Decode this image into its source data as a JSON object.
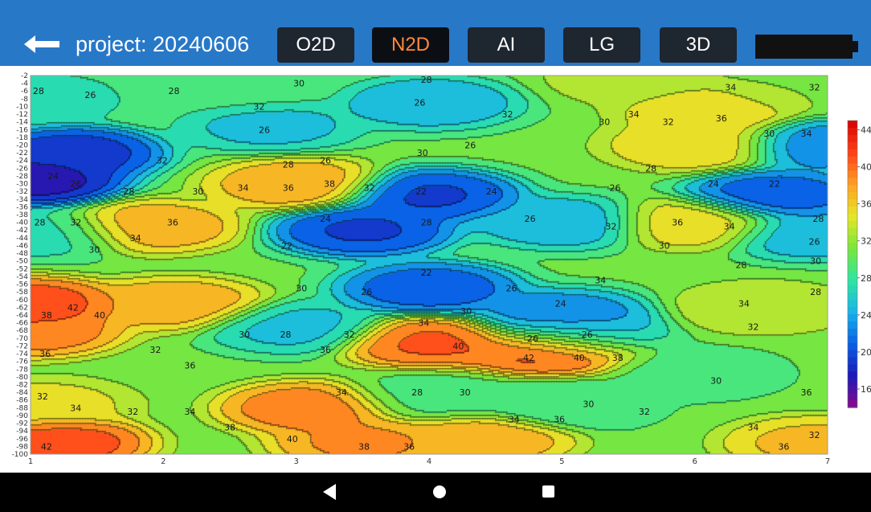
{
  "header": {
    "back_icon": "back-arrow-icon",
    "project_label": "project: 20240606",
    "modes": [
      {
        "label": "O2D",
        "active": false
      },
      {
        "label": "N2D",
        "active": true
      },
      {
        "label": "AI",
        "active": false
      },
      {
        "label": "LG",
        "active": false
      },
      {
        "label": "3D",
        "active": false
      }
    ],
    "battery_icon": "battery-icon",
    "accent_color": "#2878c8",
    "active_text_color": "#ff8a3d"
  },
  "chart_data": {
    "type": "heatmap",
    "x_ticks": [
      "1",
      "2",
      "3",
      "4",
      "5",
      "6",
      "7"
    ],
    "xlim": [
      1,
      7
    ],
    "y_ticks": [
      "-2",
      "-4",
      "-6",
      "-8",
      "-10",
      "-12",
      "-14",
      "-16",
      "-18",
      "-20",
      "-22",
      "-24",
      "-26",
      "-28",
      "-30",
      "-32",
      "-34",
      "-36",
      "-38",
      "-40",
      "-42",
      "-44",
      "-46",
      "-48",
      "-50",
      "-52",
      "-54",
      "-56",
      "-58",
      "-60",
      "-62",
      "-64",
      "-66",
      "-68",
      "-70",
      "-72",
      "-74",
      "-76",
      "-78",
      "-80",
      "-82",
      "-84",
      "-86",
      "-88",
      "-90",
      "-92",
      "-94",
      "-96",
      "-98",
      "-100"
    ],
    "ylim": [
      -100,
      -2
    ],
    "colorbar": {
      "ticks": [
        "44",
        "40",
        "36",
        "32",
        "28",
        "24",
        "20",
        "16"
      ],
      "range": [
        14,
        45
      ],
      "colors": [
        "#8a0a8a",
        "#1a1ab8",
        "#0a60e6",
        "#18b4ea",
        "#2ee6a0",
        "#7ae63c",
        "#e6e628",
        "#ffa024",
        "#ff4018",
        "#d70000"
      ]
    },
    "features": [
      {
        "x": 1.0,
        "y": -29,
        "value": 16
      },
      {
        "x": 1.3,
        "y": -22,
        "value": 18
      },
      {
        "x": 1.0,
        "y": -61,
        "value": 42
      },
      {
        "x": 1.0,
        "y": -68,
        "value": 40
      },
      {
        "x": 1.2,
        "y": -97,
        "value": 42
      },
      {
        "x": 1.0,
        "y": -8,
        "value": 26
      },
      {
        "x": 1.1,
        "y": -43,
        "value": 27
      },
      {
        "x": 1.1,
        "y": -87,
        "value": 35
      },
      {
        "x": 1.9,
        "y": -41,
        "value": 38
      },
      {
        "x": 2.1,
        "y": -61,
        "value": 38
      },
      {
        "x": 3.0,
        "y": -30,
        "value": 38
      },
      {
        "x": 3.1,
        "y": -88,
        "value": 40
      },
      {
        "x": 3.0,
        "y": -67,
        "value": 25
      },
      {
        "x": 4.0,
        "y": -71,
        "value": 41
      },
      {
        "x": 4.9,
        "y": -73,
        "value": 42
      },
      {
        "x": 4.0,
        "y": -33,
        "value": 19
      },
      {
        "x": 3.5,
        "y": -42,
        "value": 19
      },
      {
        "x": 4.0,
        "y": -57,
        "value": 20
      },
      {
        "x": 4.0,
        "y": -9,
        "value": 24
      },
      {
        "x": 2.8,
        "y": -15,
        "value": 25
      },
      {
        "x": 5.0,
        "y": -64,
        "value": 22
      },
      {
        "x": 5.1,
        "y": -69,
        "value": 25
      },
      {
        "x": 5.0,
        "y": -40,
        "value": 24
      },
      {
        "x": 6.1,
        "y": -11,
        "value": 36
      },
      {
        "x": 6.0,
        "y": -20,
        "value": 36
      },
      {
        "x": 6.0,
        "y": -40,
        "value": 36
      },
      {
        "x": 6.6,
        "y": -33,
        "value": 20
      },
      {
        "x": 7.0,
        "y": -20,
        "value": 22
      },
      {
        "x": 6.9,
        "y": -43,
        "value": 24
      },
      {
        "x": 6.5,
        "y": -62,
        "value": 34
      },
      {
        "x": 6.0,
        "y": -79,
        "value": 29
      },
      {
        "x": 5.0,
        "y": -87,
        "value": 28
      },
      {
        "x": 4.0,
        "y": -85,
        "value": 29
      },
      {
        "x": 3.5,
        "y": -97,
        "value": 39
      },
      {
        "x": 4.4,
        "y": -96,
        "value": 38
      },
      {
        "x": 6.9,
        "y": -97,
        "value": 37
      },
      {
        "x": 2.5,
        "y": -5,
        "value": 29
      },
      {
        "x": 5.5,
        "y": -3,
        "value": 33
      },
      {
        "x": 6.8,
        "y": -5,
        "value": 32
      }
    ],
    "contour_labels": [
      {
        "x": 1.06,
        "y": -6,
        "text": "28"
      },
      {
        "x": 1.45,
        "y": -7,
        "text": "26"
      },
      {
        "x": 2.08,
        "y": -6,
        "text": "28"
      },
      {
        "x": 3.02,
        "y": -4,
        "text": "30"
      },
      {
        "x": 3.98,
        "y": -3,
        "text": "28"
      },
      {
        "x": 6.27,
        "y": -5,
        "text": "34"
      },
      {
        "x": 6.9,
        "y": -5,
        "text": "32"
      },
      {
        "x": 2.72,
        "y": -10,
        "text": "32"
      },
      {
        "x": 3.93,
        "y": -9,
        "text": "26"
      },
      {
        "x": 4.59,
        "y": -12,
        "text": "32"
      },
      {
        "x": 5.54,
        "y": -12,
        "text": "34"
      },
      {
        "x": 5.32,
        "y": -14,
        "text": "30"
      },
      {
        "x": 5.8,
        "y": -14,
        "text": "32"
      },
      {
        "x": 6.2,
        "y": -13,
        "text": "36"
      },
      {
        "x": 2.76,
        "y": -16,
        "text": "26"
      },
      {
        "x": 6.56,
        "y": -17,
        "text": "30"
      },
      {
        "x": 6.84,
        "y": -17,
        "text": "34"
      },
      {
        "x": 1.99,
        "y": -24,
        "text": "32"
      },
      {
        "x": 2.94,
        "y": -25,
        "text": "28"
      },
      {
        "x": 3.22,
        "y": -24,
        "text": "26"
      },
      {
        "x": 3.95,
        "y": -22,
        "text": "30"
      },
      {
        "x": 4.31,
        "y": -20,
        "text": "26"
      },
      {
        "x": 5.67,
        "y": -26,
        "text": "28"
      },
      {
        "x": 1.17,
        "y": -28,
        "text": "24"
      },
      {
        "x": 1.34,
        "y": -30,
        "text": "26"
      },
      {
        "x": 1.74,
        "y": -32,
        "text": "28"
      },
      {
        "x": 2.26,
        "y": -32,
        "text": "30"
      },
      {
        "x": 2.6,
        "y": -31,
        "text": "34"
      },
      {
        "x": 2.94,
        "y": -31,
        "text": "36"
      },
      {
        "x": 3.25,
        "y": -30,
        "text": "38"
      },
      {
        "x": 3.55,
        "y": -31,
        "text": "32"
      },
      {
        "x": 3.94,
        "y": -32,
        "text": "22"
      },
      {
        "x": 4.47,
        "y": -32,
        "text": "24"
      },
      {
        "x": 5.4,
        "y": -31,
        "text": "26"
      },
      {
        "x": 6.14,
        "y": -30,
        "text": "24"
      },
      {
        "x": 6.6,
        "y": -30,
        "text": "22"
      },
      {
        "x": 1.07,
        "y": -40,
        "text": "28"
      },
      {
        "x": 1.34,
        "y": -40,
        "text": "32"
      },
      {
        "x": 2.07,
        "y": -40,
        "text": "36"
      },
      {
        "x": 1.79,
        "y": -44,
        "text": "34"
      },
      {
        "x": 1.48,
        "y": -47,
        "text": "30"
      },
      {
        "x": 3.22,
        "y": -39,
        "text": "24"
      },
      {
        "x": 3.98,
        "y": -40,
        "text": "28"
      },
      {
        "x": 4.76,
        "y": -39,
        "text": "26"
      },
      {
        "x": 5.37,
        "y": -41,
        "text": "32"
      },
      {
        "x": 5.87,
        "y": -40,
        "text": "36"
      },
      {
        "x": 6.26,
        "y": -41,
        "text": "34"
      },
      {
        "x": 6.93,
        "y": -39,
        "text": "28"
      },
      {
        "x": 6.9,
        "y": -45,
        "text": "26"
      },
      {
        "x": 2.93,
        "y": -46,
        "text": "22"
      },
      {
        "x": 5.77,
        "y": -46,
        "text": "30"
      },
      {
        "x": 6.35,
        "y": -51,
        "text": "28"
      },
      {
        "x": 6.91,
        "y": -50,
        "text": "30"
      },
      {
        "x": 3.98,
        "y": -53,
        "text": "22"
      },
      {
        "x": 5.29,
        "y": -55,
        "text": "34"
      },
      {
        "x": 3.04,
        "y": -57,
        "text": "30"
      },
      {
        "x": 3.53,
        "y": -58,
        "text": "26"
      },
      {
        "x": 4.62,
        "y": -57,
        "text": "26"
      },
      {
        "x": 6.91,
        "y": -58,
        "text": "28"
      },
      {
        "x": 4.99,
        "y": -61,
        "text": "24"
      },
      {
        "x": 6.37,
        "y": -61,
        "text": "34"
      },
      {
        "x": 1.32,
        "y": -62,
        "text": "42"
      },
      {
        "x": 1.12,
        "y": -64,
        "text": "38"
      },
      {
        "x": 1.52,
        "y": -64,
        "text": "40"
      },
      {
        "x": 4.28,
        "y": -63,
        "text": "30"
      },
      {
        "x": 3.96,
        "y": -66,
        "text": "34"
      },
      {
        "x": 6.44,
        "y": -67,
        "text": "32"
      },
      {
        "x": 2.61,
        "y": -69,
        "text": "30"
      },
      {
        "x": 2.92,
        "y": -69,
        "text": "28"
      },
      {
        "x": 3.4,
        "y": -69,
        "text": "32"
      },
      {
        "x": 4.78,
        "y": -70,
        "text": "26"
      },
      {
        "x": 5.19,
        "y": -69,
        "text": "26"
      },
      {
        "x": 4.22,
        "y": -72,
        "text": "40"
      },
      {
        "x": 1.11,
        "y": -74,
        "text": "36"
      },
      {
        "x": 1.94,
        "y": -73,
        "text": "32"
      },
      {
        "x": 3.22,
        "y": -73,
        "text": "36"
      },
      {
        "x": 4.75,
        "y": -75,
        "text": "42"
      },
      {
        "x": 5.13,
        "y": -75,
        "text": "40"
      },
      {
        "x": 5.42,
        "y": -75,
        "text": "38"
      },
      {
        "x": 2.2,
        "y": -77,
        "text": "36"
      },
      {
        "x": 6.16,
        "y": -81,
        "text": "30"
      },
      {
        "x": 3.34,
        "y": -84,
        "text": "34"
      },
      {
        "x": 3.91,
        "y": -84,
        "text": "28"
      },
      {
        "x": 4.27,
        "y": -84,
        "text": "30"
      },
      {
        "x": 6.84,
        "y": -84,
        "text": "36"
      },
      {
        "x": 1.09,
        "y": -85,
        "text": "32"
      },
      {
        "x": 1.34,
        "y": -88,
        "text": "34"
      },
      {
        "x": 5.2,
        "y": -87,
        "text": "30"
      },
      {
        "x": 1.77,
        "y": -89,
        "text": "32"
      },
      {
        "x": 2.2,
        "y": -89,
        "text": "34"
      },
      {
        "x": 5.62,
        "y": -89,
        "text": "32"
      },
      {
        "x": 4.64,
        "y": -91,
        "text": "34"
      },
      {
        "x": 4.98,
        "y": -91,
        "text": "36"
      },
      {
        "x": 2.5,
        "y": -93,
        "text": "38"
      },
      {
        "x": 6.44,
        "y": -93,
        "text": "34"
      },
      {
        "x": 6.9,
        "y": -95,
        "text": "32"
      },
      {
        "x": 2.97,
        "y": -96,
        "text": "40"
      },
      {
        "x": 1.12,
        "y": -98,
        "text": "42"
      },
      {
        "x": 3.51,
        "y": -98,
        "text": "38"
      },
      {
        "x": 3.85,
        "y": -98,
        "text": "36"
      },
      {
        "x": 6.67,
        "y": -98,
        "text": "36"
      }
    ]
  },
  "nav": {
    "back_icon": "nav-back-icon",
    "home_icon": "nav-home-icon",
    "recent_icon": "nav-recents-icon"
  }
}
